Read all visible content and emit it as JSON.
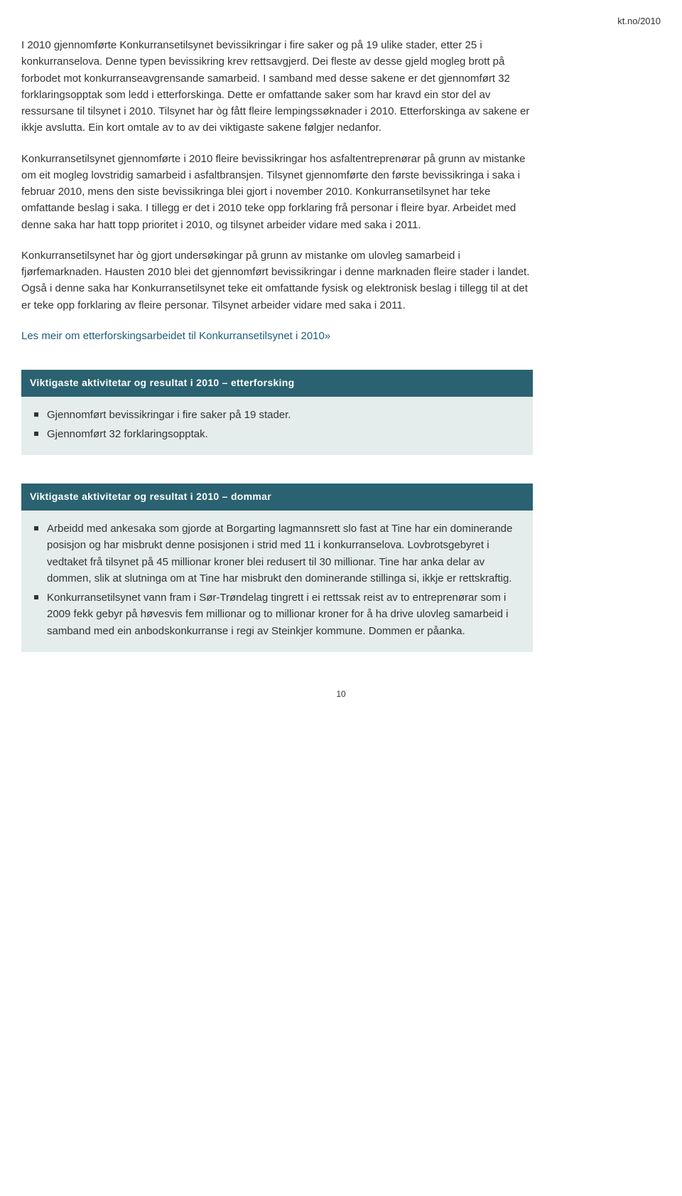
{
  "header_note": "kt.no/2010",
  "paragraphs": [
    "I 2010 gjennomførte Konkurransetilsynet bevissikringar i fire saker og på 19 ulike stader, etter 25 i konkurranselova. Denne typen bevissikring krev rettsavgjerd. Dei fleste av desse gjeld mogleg brott på forbodet mot konkurranseavgrensande samarbeid. I samband med desse sakene er det gjennomført 32 forklaringsopptak som ledd i etterforskinga. Dette er omfattande saker som har kravd ein stor del av ressursane til tilsynet i 2010. Tilsynet har òg fått fleire lempingssøknader i 2010. Etterforskinga av sakene er ikkje avslutta. Ein kort omtale av to av dei viktigaste sakene følgjer nedanfor.",
    "Konkurransetilsynet gjennomførte i 2010 fleire bevissikringar hos asfaltentreprenørar på grunn av mistanke om eit mogleg lovstridig samarbeid i asfaltbransjen. Tilsynet gjennomførte den første bevissikringa i saka i februar 2010, mens den siste bevissikringa blei gjort i november 2010. Konkurransetilsynet har teke omfattande beslag i saka. I tillegg er det i 2010 teke opp forklaring frå personar i fleire byar. Arbeidet med denne saka har hatt topp prioritet i 2010, og tilsynet arbeider vidare med saka i 2011.",
    "Konkurransetilsynet har òg gjort undersøkingar på grunn av mistanke om ulovleg samarbeid i fjørfemarknaden. Hausten 2010 blei det gjennomført bevissikringar i denne marknaden fleire stader i landet. Også i denne saka har Konkurransetilsynet teke eit omfattande fysisk og elektronisk beslag i tillegg til at det er teke opp forklaring av fleire personar. Tilsynet arbeider vidare med saka i 2011."
  ],
  "link_text": "Les meir om etterforskingsarbeidet til Konkurransetilsynet i 2010»",
  "sections": [
    {
      "title": "Viktigaste aktivitetar og resultat i 2010 – etterforsking",
      "items": [
        "Gjennomført bevissikringar i fire saker på 19 stader.",
        "Gjennomført 32 forklaringsopptak."
      ]
    },
    {
      "title": "Viktigaste aktivitetar og resultat i 2010 – dommar",
      "items": [
        "Arbeidd med ankesaka som gjorde at Borgarting lagmannsrett slo fast at Tine har ein dominerande posisjon og har misbrukt denne posisjonen i strid med 11 i konkurranselova. Lovbrotsgebyret i vedtaket frå tilsynet på 45 millionar kroner blei redusert til 30 millionar. Tine har anka delar av dommen, slik at slutninga om at Tine har misbrukt den dominerande stillinga si, ikkje er rettskraftig.",
        "Konkurransetilsynet vann fram i Sør-Trøndelag tingrett i ei rettssak reist av to entreprenørar som i 2009 fekk gebyr på høvesvis fem millionar og to millionar kroner for å ha drive ulovleg samarbeid i samband med ein anbodskonkurranse i regi av Steinkjer kommune. Dommen er påanka."
      ]
    }
  ],
  "page_number": "10",
  "colors": {
    "section_header_bg": "#2a6271",
    "section_body_bg": "#e4ecec",
    "link_color": "#1f5b7a",
    "text_color": "#333333",
    "background": "#ffffff"
  }
}
